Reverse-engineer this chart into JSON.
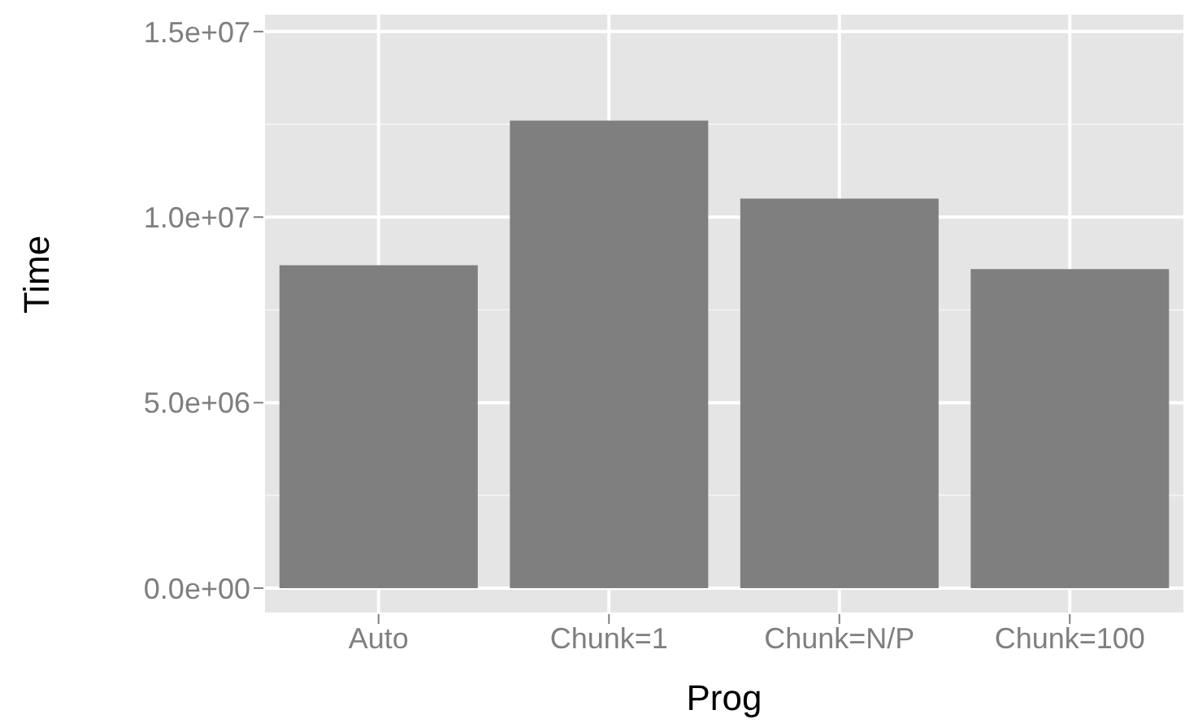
{
  "chart_data": {
    "type": "bar",
    "xlabel": "Prog",
    "ylabel": "Time",
    "categories": [
      "Auto",
      "Chunk=1",
      "Chunk=N/P",
      "Chunk=100"
    ],
    "values": [
      8700000,
      12600000,
      10500000,
      8600000
    ],
    "color": "#7f7f7f",
    "ylim": [
      -700000,
      15500000
    ],
    "yticks": [
      {
        "value": 0,
        "label": "0.0e+00"
      },
      {
        "value": 5000000,
        "label": "5.0e+06"
      },
      {
        "value": 10000000,
        "label": "1.0e+07"
      },
      {
        "value": 15000000,
        "label": "1.5e+07"
      }
    ],
    "grid": true
  }
}
